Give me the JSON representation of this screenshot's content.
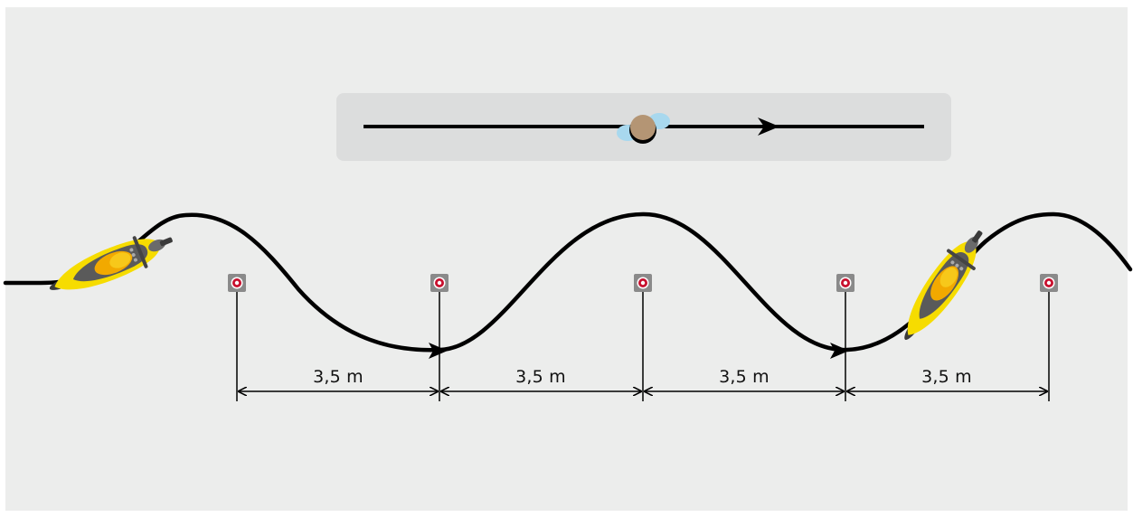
{
  "diagram": {
    "legend": {
      "icon": "pedestrian-top-view-icon",
      "line_color": "#000000",
      "bg_color": "#dcdddd"
    },
    "path_color": "#000000",
    "cone_count": 5,
    "marker_colors": {
      "outer": "#8a8a8a",
      "ring": "#c8102e"
    },
    "motorcycle_icon": "motorcycle-top-view-icon",
    "motorcycle_colors": {
      "body": "#f6dc00",
      "dark": "#5a5a5a"
    },
    "dimensions": [
      {
        "label": "3,5 m"
      },
      {
        "label": "3,5 m"
      },
      {
        "label": "3,5 m"
      },
      {
        "label": "3,5 m"
      }
    ]
  }
}
